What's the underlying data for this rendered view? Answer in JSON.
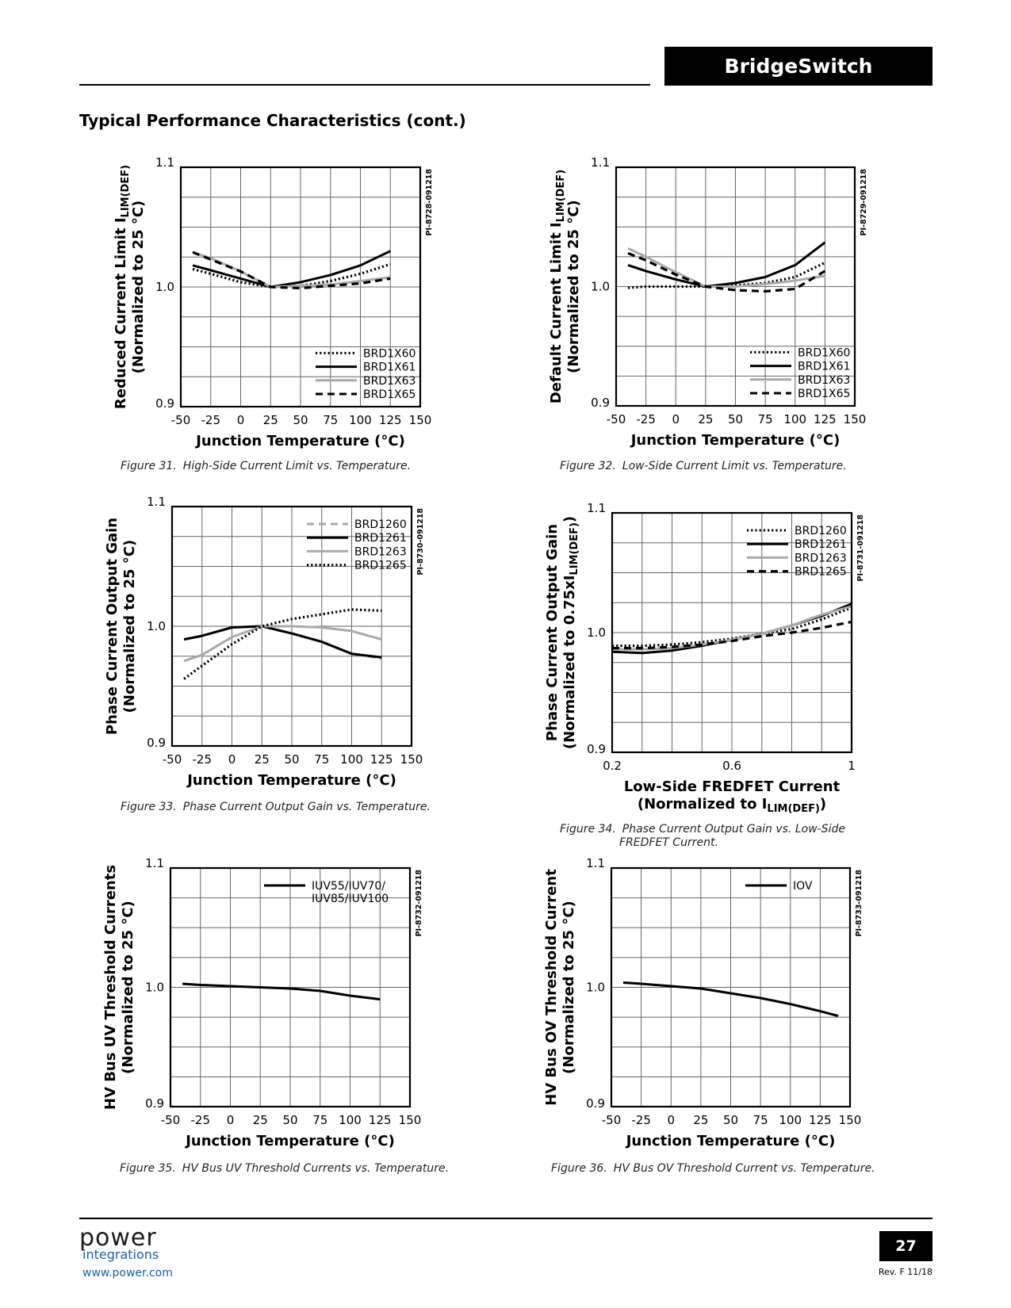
{
  "header": {
    "brand": "BridgeSwitch"
  },
  "section_title": "Typical Performance Characteristics (cont.)",
  "footer": {
    "logo_power": "power",
    "logo_integrations": "integrations",
    "website": "www.power.com",
    "page_number": "27",
    "revision": "Rev. F 11/18"
  },
  "chart_data": [
    {
      "type": "line",
      "figure_number": "Figure 31.",
      "caption": "High-Side Current Limit vs. Temperature.",
      "id_code": "PI-8728-091218",
      "ylabel_line1": "Reduced Current Limit I",
      "ylabel_line1_sub": "LIM(DEF)",
      "ylabel_line2": "(Normalized to 25 °C)",
      "xlabel": "Junction Temperature (°C)",
      "xlabel_line2": "",
      "xlabel_line2_sub": "",
      "xlabel_line2_end": "",
      "xlim": [
        -50,
        150
      ],
      "ylim": [
        0.9,
        1.1
      ],
      "xticks": [
        -50,
        -25,
        0,
        25,
        50,
        75,
        100,
        125,
        150
      ],
      "xtick_labels": [
        "-50",
        "-25",
        "0",
        "25",
        "50",
        "75",
        "100",
        "125",
        "150"
      ],
      "yticks": [
        0.9,
        1.0,
        1.1
      ],
      "ytick_labels": [
        "0.9",
        "1.0",
        "1.1"
      ],
      "legend_position": "bottom-right",
      "series": [
        {
          "name": "BRD1X60",
          "color": "#000000",
          "style": "dotted",
          "x": [
            -40,
            -25,
            0,
            25,
            50,
            75,
            100,
            125
          ],
          "y": [
            1.015,
            1.011,
            1.004,
            1.0,
            1.001,
            1.005,
            1.011,
            1.019
          ]
        },
        {
          "name": "BRD1X61",
          "color": "#000000",
          "style": "solid",
          "x": [
            -40,
            -25,
            0,
            25,
            50,
            75,
            100,
            125
          ],
          "y": [
            1.018,
            1.014,
            1.007,
            1.0,
            1.004,
            1.01,
            1.018,
            1.03
          ]
        },
        {
          "name": "BRD1X63",
          "color": "#aaaaaa",
          "style": "solid",
          "x": [
            -40,
            -25,
            0,
            25,
            50,
            75,
            100,
            125
          ],
          "y": [
            1.029,
            1.024,
            1.013,
            1.0,
            1.001,
            1.002,
            1.005,
            1.008
          ]
        },
        {
          "name": "BRD1X65",
          "color": "#000000",
          "style": "dashed",
          "x": [
            -40,
            -25,
            0,
            25,
            50,
            75,
            100,
            125
          ],
          "y": [
            1.029,
            1.023,
            1.013,
            1.0,
            0.999,
            1.001,
            1.003,
            1.007
          ]
        }
      ]
    },
    {
      "type": "line",
      "figure_number": "Figure 32.",
      "caption": "Low-Side Current Limit vs. Temperature.",
      "id_code": "PI-8729-091218",
      "ylabel_line1": "Default Current Limit I",
      "ylabel_line1_sub": "LIM(DEF)",
      "ylabel_line2": "(Normalized to 25 °C)",
      "xlabel": "Junction Temperature (°C)",
      "xlabel_line2": "",
      "xlabel_line2_sub": "",
      "xlabel_line2_end": "",
      "xlim": [
        -50,
        150
      ],
      "ylim": [
        0.9,
        1.1
      ],
      "xticks": [
        -50,
        -25,
        0,
        25,
        50,
        75,
        100,
        125,
        150
      ],
      "xtick_labels": [
        "-50",
        "-25",
        "0",
        "25",
        "50",
        "75",
        "100",
        "125",
        "150"
      ],
      "yticks": [
        0.9,
        1.0,
        1.1
      ],
      "ytick_labels": [
        "0.9",
        "1.0",
        "1.1"
      ],
      "legend_position": "bottom-right",
      "series": [
        {
          "name": "BRD1X60",
          "color": "#000000",
          "style": "dotted",
          "x": [
            -40,
            -25,
            0,
            25,
            50,
            75,
            100,
            125
          ],
          "y": [
            0.999,
            1.0,
            1.0,
            1.0,
            1.001,
            1.003,
            1.008,
            1.02
          ]
        },
        {
          "name": "BRD1X61",
          "color": "#000000",
          "style": "solid",
          "x": [
            -40,
            -25,
            0,
            25,
            50,
            75,
            100,
            125
          ],
          "y": [
            1.018,
            1.013,
            1.006,
            1.0,
            1.003,
            1.008,
            1.018,
            1.037
          ]
        },
        {
          "name": "BRD1X63",
          "color": "#aaaaaa",
          "style": "solid",
          "x": [
            -40,
            -25,
            0,
            25,
            50,
            75,
            100,
            125
          ],
          "y": [
            1.032,
            1.025,
            1.012,
            1.0,
            1.0,
            1.002,
            1.005,
            1.009
          ]
        },
        {
          "name": "BRD1X65",
          "color": "#000000",
          "style": "dashed",
          "x": [
            -40,
            -25,
            0,
            25,
            50,
            75,
            100,
            125
          ],
          "y": [
            1.028,
            1.022,
            1.01,
            1.0,
            0.997,
            0.996,
            0.998,
            1.013
          ]
        }
      ]
    },
    {
      "type": "line",
      "figure_number": "Figure 33.",
      "caption": "Phase Current Output Gain vs. Temperature.",
      "id_code": "PI-8730-091218",
      "ylabel_line1": "Phase Current Output Gain",
      "ylabel_line1_sub": "",
      "ylabel_line2": "(Normalized to 25 °C)",
      "xlabel": "Junction Temperature (°C)",
      "xlabel_line2": "",
      "xlabel_line2_sub": "",
      "xlabel_line2_end": "",
      "xlim": [
        -50,
        150
      ],
      "ylim": [
        0.9,
        1.1
      ],
      "xticks": [
        -50,
        -25,
        0,
        25,
        50,
        75,
        100,
        125,
        150
      ],
      "xtick_labels": [
        "-50",
        "-25",
        "0",
        "25",
        "50",
        "75",
        "100",
        "125",
        "150"
      ],
      "yticks": [
        0.9,
        1.0,
        1.1
      ],
      "ytick_labels": [
        "0.9",
        "1.0",
        "1.1"
      ],
      "legend_position": "top-right",
      "series": [
        {
          "name": "BRD1260",
          "color": "#aaaaaa",
          "style": "dashed",
          "x": [
            -40,
            -25,
            0,
            25,
            50,
            75,
            100,
            125
          ],
          "y": [
            0.989,
            0.992,
            0.999,
            1.0,
            0.994,
            0.987,
            0.977,
            0.973
          ]
        },
        {
          "name": "BRD1261",
          "color": "#000000",
          "style": "solid",
          "x": [
            -40,
            -25,
            0,
            25,
            50,
            75,
            100,
            125
          ],
          "y": [
            0.989,
            0.992,
            0.999,
            1.0,
            0.994,
            0.987,
            0.977,
            0.974
          ]
        },
        {
          "name": "BRD1263",
          "color": "#aaaaaa",
          "style": "solid",
          "x": [
            -40,
            -25,
            0,
            25,
            50,
            75,
            100,
            125
          ],
          "y": [
            0.971,
            0.976,
            0.991,
            1.0,
            1.0,
            0.999,
            0.996,
            0.989
          ]
        },
        {
          "name": "BRD1265",
          "color": "#000000",
          "style": "dotted",
          "x": [
            -40,
            -25,
            0,
            25,
            50,
            75,
            100,
            125
          ],
          "y": [
            0.956,
            0.967,
            0.985,
            1.0,
            1.006,
            1.01,
            1.014,
            1.013
          ]
        }
      ]
    },
    {
      "type": "line",
      "figure_number": "Figure 34.",
      "caption": "Phase Current Output Gain vs. Low-Side FREDFET Current.",
      "id_code": "PI-8731-091218",
      "ylabel_line1": "Phase Current Output Gain",
      "ylabel_line1_sub": "",
      "ylabel_line2": "(Normalized to 0.75xI",
      "ylabel_line2_sub": "LIM(DEF)",
      "ylabel_line2_end": ")",
      "xlabel": "Low-Side FREDFET Current",
      "xlabel_line2": "(Normalized to I",
      "xlabel_line2_sub": "LIM(DEF)",
      "xlabel_line2_end": ")",
      "xlim": [
        0.2,
        1.0
      ],
      "ylim": [
        0.9,
        1.1
      ],
      "xticks": [
        0.2,
        0.6,
        1.0
      ],
      "xtick_labels": [
        "0.2",
        "0.6",
        "1"
      ],
      "xgrid_step": 0.1,
      "yticks": [
        0.9,
        1.0,
        1.1
      ],
      "ytick_labels": [
        "0.9",
        "1.0",
        "1.1"
      ],
      "legend_position": "top-right",
      "series": [
        {
          "name": "BRD1260",
          "color": "#000000",
          "style": "dotted",
          "x": [
            0.2,
            0.3,
            0.4,
            0.5,
            0.6,
            0.7,
            0.8,
            0.9,
            1.0
          ],
          "y": [
            0.989,
            0.989,
            0.99,
            0.992,
            0.995,
            0.999,
            1.003,
            1.011,
            1.021
          ]
        },
        {
          "name": "BRD1261",
          "color": "#000000",
          "style": "solid",
          "x": [
            0.2,
            0.3,
            0.4,
            0.5,
            0.6,
            0.7,
            0.8,
            0.9,
            1.0
          ],
          "y": [
            0.984,
            0.983,
            0.985,
            0.989,
            0.994,
            0.999,
            1.006,
            1.014,
            1.024
          ]
        },
        {
          "name": "BRD1263",
          "color": "#aaaaaa",
          "style": "solid",
          "x": [
            0.2,
            0.3,
            0.4,
            0.5,
            0.6,
            0.7,
            0.8,
            0.9,
            1.0
          ],
          "y": [
            0.986,
            0.986,
            0.987,
            0.99,
            0.994,
            0.999,
            1.006,
            1.015,
            1.022
          ]
        },
        {
          "name": "BRD1265",
          "color": "#000000",
          "style": "dashed",
          "x": [
            0.2,
            0.3,
            0.4,
            0.5,
            0.6,
            0.7,
            0.8,
            0.9,
            1.0
          ],
          "y": [
            0.987,
            0.987,
            0.988,
            0.99,
            0.993,
            0.997,
            1.0,
            1.004,
            1.009
          ]
        }
      ]
    },
    {
      "type": "line",
      "figure_number": "Figure 35.",
      "caption": "HV Bus UV Threshold Currents vs. Temperature.",
      "id_code": "PI-8732-091218",
      "ylabel_line1": "HV Bus UV Threshold Currents",
      "ylabel_line1_sub": "",
      "ylabel_line2": "(Normalized to 25 °C)",
      "xlabel": "Junction Temperature (°C)",
      "xlabel_line2": "",
      "xlabel_line2_sub": "",
      "xlabel_line2_end": "",
      "xlim": [
        -50,
        150
      ],
      "ylim": [
        0.9,
        1.1
      ],
      "xticks": [
        -50,
        -25,
        0,
        25,
        50,
        75,
        100,
        125,
        150
      ],
      "xtick_labels": [
        "-50",
        "-25",
        "0",
        "25",
        "50",
        "75",
        "100",
        "125",
        "150"
      ],
      "yticks": [
        0.9,
        1.0,
        1.1
      ],
      "ytick_labels": [
        "0.9",
        "1.0",
        "1.1"
      ],
      "legend_position": "top-right",
      "series": [
        {
          "name": "IUV55/IUV70/\nIUV85/IUV100",
          "color": "#000000",
          "style": "solid",
          "x": [
            -40,
            -25,
            0,
            25,
            50,
            75,
            100,
            125
          ],
          "y": [
            1.003,
            1.002,
            1.001,
            1.0,
            0.999,
            0.997,
            0.993,
            0.99
          ]
        }
      ]
    },
    {
      "type": "line",
      "figure_number": "Figure 36.",
      "caption": "HV Bus OV Threshold Current vs. Temperature.",
      "id_code": "PI-8733-091218",
      "ylabel_line1": "HV Bus OV Threshold Current",
      "ylabel_line1_sub": "",
      "ylabel_line2": "(Normalized to 25 °C)",
      "xlabel": "Junction Temperature (°C)",
      "xlabel_line2": "",
      "xlabel_line2_sub": "",
      "xlabel_line2_end": "",
      "xlim": [
        -50,
        150
      ],
      "ylim": [
        0.9,
        1.1
      ],
      "xticks": [
        -50,
        -25,
        0,
        25,
        50,
        75,
        100,
        125,
        150
      ],
      "xtick_labels": [
        "-50",
        "-25",
        "0",
        "25",
        "50",
        "75",
        "100",
        "125",
        "150"
      ],
      "yticks": [
        0.9,
        1.0,
        1.1
      ],
      "ytick_labels": [
        "0.9",
        "1.0",
        "1.1"
      ],
      "legend_position": "top-right",
      "series": [
        {
          "name": "IOV",
          "color": "#000000",
          "style": "solid",
          "x": [
            -40,
            -25,
            0,
            25,
            50,
            75,
            100,
            125,
            140
          ],
          "y": [
            1.004,
            1.003,
            1.001,
            0.999,
            0.995,
            0.991,
            0.986,
            0.98,
            0.976
          ]
        }
      ]
    }
  ]
}
